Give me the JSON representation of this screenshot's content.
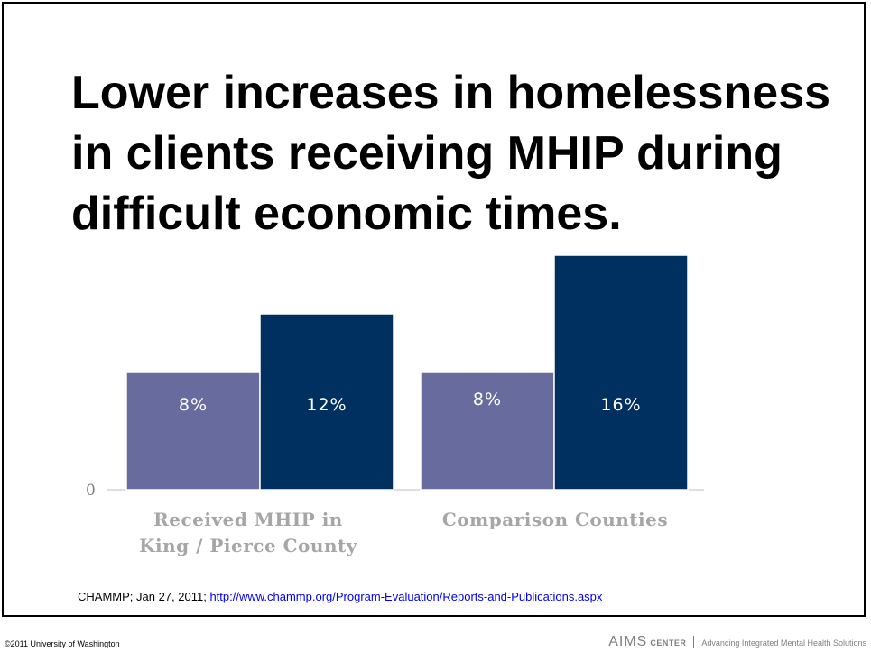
{
  "slide": {
    "title_lines": [
      "Lower increases in homelessness",
      "in clients receiving MHIP during",
      "difficult economic times."
    ],
    "source_prefix": "CHAMMP; Jan 27, 2011; ",
    "source_link": "http://www.chammp.org/Program-Evaluation/Reports-and-Publications.aspx",
    "copyright": "©2011 University of Washington",
    "brand": {
      "name": "AIMS",
      "name_suffix": "CENTER",
      "tagline": "Advancing Integrated Mental Health Solutions"
    }
  },
  "chart_data": {
    "type": "bar",
    "categories": [
      [
        "Received MHIP in",
        "King / Pierce County"
      ],
      [
        "Comparison Counties"
      ]
    ],
    "series": [
      {
        "values": [
          8,
          8
        ],
        "labels": [
          "8%",
          "8%"
        ],
        "color": "#686b9e"
      },
      {
        "values": [
          12,
          16
        ],
        "labels": [
          "12%",
          "16%"
        ],
        "color": "#00305f"
      }
    ],
    "y_tick_label": "0",
    "ylim": [
      0,
      16
    ],
    "grid": false,
    "legend": "none",
    "title": "",
    "xlabel": "",
    "ylabel": ""
  }
}
